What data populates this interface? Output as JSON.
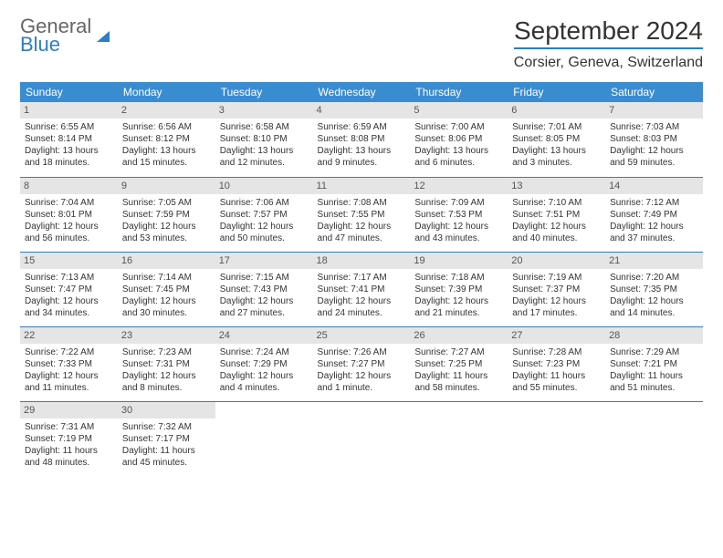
{
  "logo": {
    "line1": "General",
    "line2": "Blue"
  },
  "title": "September 2024",
  "location": "Corsier, Geneva, Switzerland",
  "colors": {
    "header_bg": "#3a8cd1",
    "header_text": "#ffffff",
    "accent": "#2f7dc4",
    "daynum_bg": "#e5e5e5",
    "text": "#333333"
  },
  "weekdays": [
    "Sunday",
    "Monday",
    "Tuesday",
    "Wednesday",
    "Thursday",
    "Friday",
    "Saturday"
  ],
  "weeks": [
    [
      {
        "n": "1",
        "sr": "6:55 AM",
        "ss": "8:14 PM",
        "dl": "13 hours and 18 minutes."
      },
      {
        "n": "2",
        "sr": "6:56 AM",
        "ss": "8:12 PM",
        "dl": "13 hours and 15 minutes."
      },
      {
        "n": "3",
        "sr": "6:58 AM",
        "ss": "8:10 PM",
        "dl": "13 hours and 12 minutes."
      },
      {
        "n": "4",
        "sr": "6:59 AM",
        "ss": "8:08 PM",
        "dl": "13 hours and 9 minutes."
      },
      {
        "n": "5",
        "sr": "7:00 AM",
        "ss": "8:06 PM",
        "dl": "13 hours and 6 minutes."
      },
      {
        "n": "6",
        "sr": "7:01 AM",
        "ss": "8:05 PM",
        "dl": "13 hours and 3 minutes."
      },
      {
        "n": "7",
        "sr": "7:03 AM",
        "ss": "8:03 PM",
        "dl": "12 hours and 59 minutes."
      }
    ],
    [
      {
        "n": "8",
        "sr": "7:04 AM",
        "ss": "8:01 PM",
        "dl": "12 hours and 56 minutes."
      },
      {
        "n": "9",
        "sr": "7:05 AM",
        "ss": "7:59 PM",
        "dl": "12 hours and 53 minutes."
      },
      {
        "n": "10",
        "sr": "7:06 AM",
        "ss": "7:57 PM",
        "dl": "12 hours and 50 minutes."
      },
      {
        "n": "11",
        "sr": "7:08 AM",
        "ss": "7:55 PM",
        "dl": "12 hours and 47 minutes."
      },
      {
        "n": "12",
        "sr": "7:09 AM",
        "ss": "7:53 PM",
        "dl": "12 hours and 43 minutes."
      },
      {
        "n": "13",
        "sr": "7:10 AM",
        "ss": "7:51 PM",
        "dl": "12 hours and 40 minutes."
      },
      {
        "n": "14",
        "sr": "7:12 AM",
        "ss": "7:49 PM",
        "dl": "12 hours and 37 minutes."
      }
    ],
    [
      {
        "n": "15",
        "sr": "7:13 AM",
        "ss": "7:47 PM",
        "dl": "12 hours and 34 minutes."
      },
      {
        "n": "16",
        "sr": "7:14 AM",
        "ss": "7:45 PM",
        "dl": "12 hours and 30 minutes."
      },
      {
        "n": "17",
        "sr": "7:15 AM",
        "ss": "7:43 PM",
        "dl": "12 hours and 27 minutes."
      },
      {
        "n": "18",
        "sr": "7:17 AM",
        "ss": "7:41 PM",
        "dl": "12 hours and 24 minutes."
      },
      {
        "n": "19",
        "sr": "7:18 AM",
        "ss": "7:39 PM",
        "dl": "12 hours and 21 minutes."
      },
      {
        "n": "20",
        "sr": "7:19 AM",
        "ss": "7:37 PM",
        "dl": "12 hours and 17 minutes."
      },
      {
        "n": "21",
        "sr": "7:20 AM",
        "ss": "7:35 PM",
        "dl": "12 hours and 14 minutes."
      }
    ],
    [
      {
        "n": "22",
        "sr": "7:22 AM",
        "ss": "7:33 PM",
        "dl": "12 hours and 11 minutes."
      },
      {
        "n": "23",
        "sr": "7:23 AM",
        "ss": "7:31 PM",
        "dl": "12 hours and 8 minutes."
      },
      {
        "n": "24",
        "sr": "7:24 AM",
        "ss": "7:29 PM",
        "dl": "12 hours and 4 minutes."
      },
      {
        "n": "25",
        "sr": "7:26 AM",
        "ss": "7:27 PM",
        "dl": "12 hours and 1 minute."
      },
      {
        "n": "26",
        "sr": "7:27 AM",
        "ss": "7:25 PM",
        "dl": "11 hours and 58 minutes."
      },
      {
        "n": "27",
        "sr": "7:28 AM",
        "ss": "7:23 PM",
        "dl": "11 hours and 55 minutes."
      },
      {
        "n": "28",
        "sr": "7:29 AM",
        "ss": "7:21 PM",
        "dl": "11 hours and 51 minutes."
      }
    ],
    [
      {
        "n": "29",
        "sr": "7:31 AM",
        "ss": "7:19 PM",
        "dl": "11 hours and 48 minutes."
      },
      {
        "n": "30",
        "sr": "7:32 AM",
        "ss": "7:17 PM",
        "dl": "11 hours and 45 minutes."
      },
      null,
      null,
      null,
      null,
      null
    ]
  ],
  "labels": {
    "sunrise": "Sunrise: ",
    "sunset": "Sunset: ",
    "daylight": "Daylight: "
  }
}
